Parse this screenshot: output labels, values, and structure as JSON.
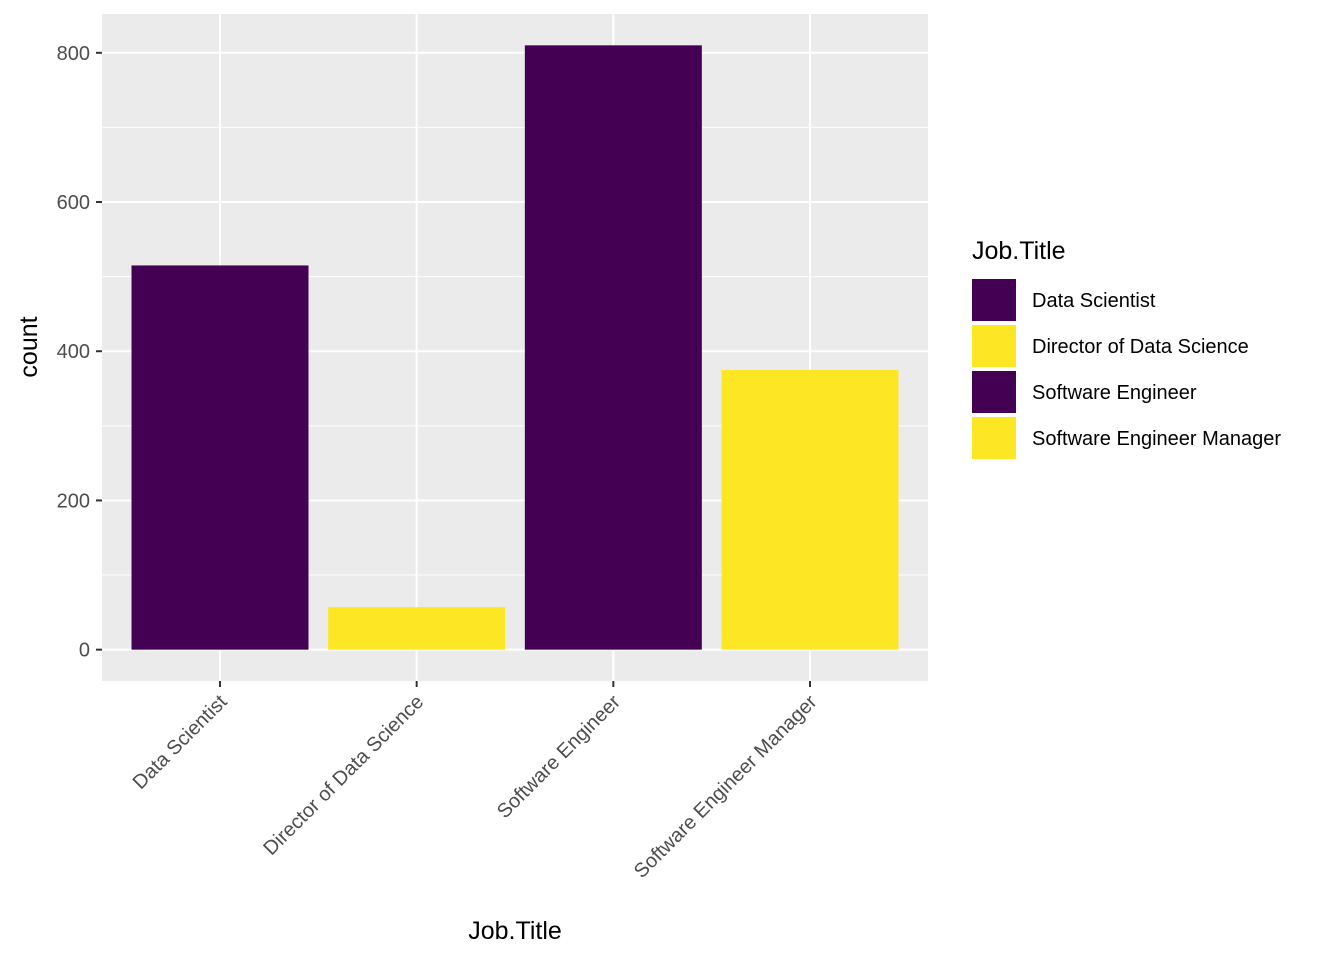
{
  "chart_data": {
    "type": "bar",
    "xlabel": "Job.Title",
    "ylabel": "count",
    "categories": [
      "Data Scientist",
      "Director of Data Science",
      "Software Engineer",
      "Software Engineer Manager"
    ],
    "values": [
      515,
      57,
      810,
      375
    ],
    "fill_by_category": [
      "#440154",
      "#FDE725",
      "#440154",
      "#FDE725"
    ],
    "ylim": [
      -42,
      852
    ],
    "yticks": [
      0,
      200,
      400,
      600,
      800
    ],
    "ytick_labels": [
      "0",
      "200",
      "400",
      "600",
      "800"
    ],
    "grid": true,
    "legend": {
      "title": "Job.Title",
      "position": "right",
      "items": [
        {
          "label": "Data Scientist",
          "color": "#440154"
        },
        {
          "label": "Director of Data Science",
          "color": "#FDE725"
        },
        {
          "label": "Software Engineer",
          "color": "#440154"
        },
        {
          "label": "Software Engineer Manager",
          "color": "#FDE725"
        }
      ]
    }
  },
  "style": {
    "panel_background": "#EBEBEB",
    "grid_color": "#FFFFFF"
  }
}
